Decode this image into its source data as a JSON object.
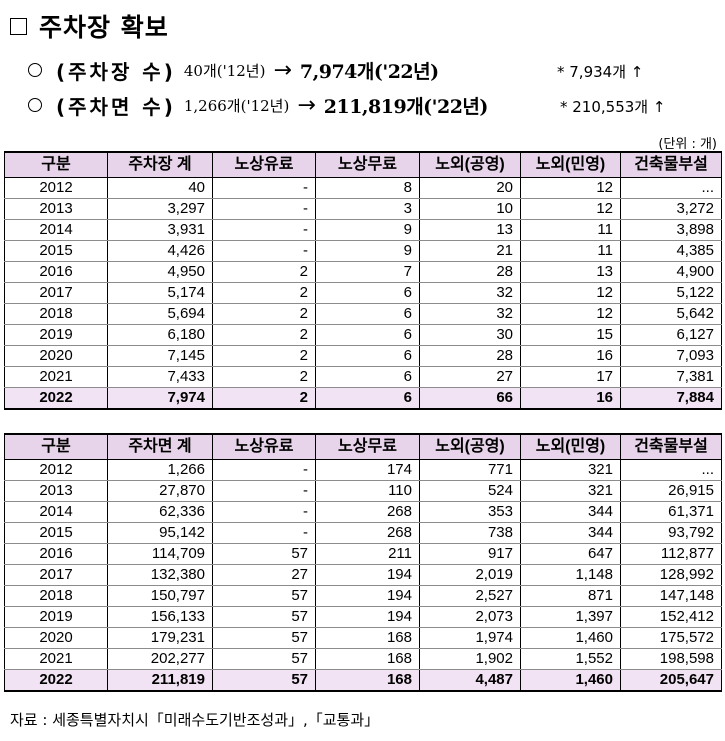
{
  "title": "주차장 확보",
  "bullets": [
    {
      "label": "(주차장 수)",
      "from": "40개('12년)",
      "arrow": "→",
      "to": "7,974개('22년)",
      "note": "* 7,934개 ↑"
    },
    {
      "label": "(주차면 수)",
      "from": "1,266개('12년)",
      "arrow": "→",
      "to": "211,819개('22년)",
      "note": "* 210,553개 ↑"
    }
  ],
  "unit": "(단위 : 개)",
  "table1": {
    "headers": [
      "구분",
      "주차장 계",
      "노상유료",
      "노상무료",
      "노외(공영)",
      "노외(민영)",
      "건축물부설"
    ],
    "rows": [
      [
        "2012",
        "40",
        "-",
        "8",
        "20",
        "12",
        "..."
      ],
      [
        "2013",
        "3,297",
        "-",
        "3",
        "10",
        "12",
        "3,272"
      ],
      [
        "2014",
        "3,931",
        "-",
        "9",
        "13",
        "11",
        "3,898"
      ],
      [
        "2015",
        "4,426",
        "-",
        "9",
        "21",
        "11",
        "4,385"
      ],
      [
        "2016",
        "4,950",
        "2",
        "7",
        "28",
        "13",
        "4,900"
      ],
      [
        "2017",
        "5,174",
        "2",
        "6",
        "32",
        "12",
        "5,122"
      ],
      [
        "2018",
        "5,694",
        "2",
        "6",
        "32",
        "12",
        "5,642"
      ],
      [
        "2019",
        "6,180",
        "2",
        "6",
        "30",
        "15",
        "6,127"
      ],
      [
        "2020",
        "7,145",
        "2",
        "6",
        "28",
        "16",
        "7,093"
      ],
      [
        "2021",
        "7,433",
        "2",
        "6",
        "27",
        "17",
        "7,381"
      ],
      [
        "2022",
        "7,974",
        "2",
        "6",
        "66",
        "16",
        "7,884"
      ]
    ]
  },
  "table2": {
    "headers": [
      "구분",
      "주차면 계",
      "노상유료",
      "노상무료",
      "노외(공영)",
      "노외(민영)",
      "건축물부설"
    ],
    "rows": [
      [
        "2012",
        "1,266",
        "-",
        "174",
        "771",
        "321",
        "..."
      ],
      [
        "2013",
        "27,870",
        "-",
        "110",
        "524",
        "321",
        "26,915"
      ],
      [
        "2014",
        "62,336",
        "-",
        "268",
        "353",
        "344",
        "61,371"
      ],
      [
        "2015",
        "95,142",
        "-",
        "268",
        "738",
        "344",
        "93,792"
      ],
      [
        "2016",
        "114,709",
        "57",
        "211",
        "917",
        "647",
        "112,877"
      ],
      [
        "2017",
        "132,380",
        "27",
        "194",
        "2,019",
        "1,148",
        "128,992"
      ],
      [
        "2018",
        "150,797",
        "57",
        "194",
        "2,527",
        "871",
        "147,148"
      ],
      [
        "2019",
        "156,133",
        "57",
        "194",
        "2,073",
        "1,397",
        "152,412"
      ],
      [
        "2020",
        "179,231",
        "57",
        "168",
        "1,974",
        "1,460",
        "175,572"
      ],
      [
        "2021",
        "202,277",
        "57",
        "168",
        "1,902",
        "1,552",
        "198,598"
      ],
      [
        "2022",
        "211,819",
        "57",
        "168",
        "4,487",
        "1,460",
        "205,647"
      ]
    ]
  },
  "source": "자료 : 세종특별자치시「미래수도기반조성과」,「교통과」"
}
